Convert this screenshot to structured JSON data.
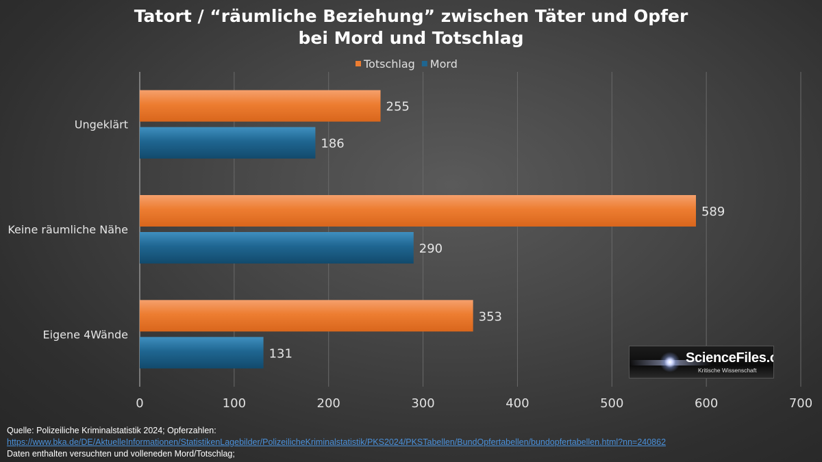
{
  "chart_data": {
    "type": "bar",
    "orientation": "horizontal",
    "title_lines": [
      "Tatort / “räumliche Beziehung” zwischen Täter und Opfer",
      "bei Mord und Totschlag"
    ],
    "categories": [
      "Ungeklärt",
      "Keine räumliche Nähe",
      "Eigene 4Wände"
    ],
    "series": [
      {
        "name": "Totschlag",
        "color": "#ed7d31",
        "values": [
          255,
          589,
          353
        ]
      },
      {
        "name": "Mord",
        "color": "#1f6691",
        "values": [
          186,
          290,
          131
        ]
      }
    ],
    "xlim": [
      0,
      700
    ],
    "xticks": [
      0,
      100,
      200,
      300,
      400,
      500,
      600,
      700
    ],
    "legend_position": "top",
    "data_labels": true,
    "grid": "vertical"
  },
  "source": {
    "line1": "Quelle: Polizeiliche Kriminalstatistik 2024; Opferzahlen:",
    "link": "https://www.bka.de/DE/AktuelleInformationen/StatistikenLagebilder/PolizeilicheKriminalstatistik/PKS2024/PKSTabellen/BundOpfertabellen/bundopfertabellen.html?nn=240862",
    "line3": "Daten enthalten versuchten und volleneden Mord/Totschlag;"
  },
  "logo": {
    "name": "ScienceFiles.org",
    "tagline": "Kritische Wissenschaft"
  }
}
